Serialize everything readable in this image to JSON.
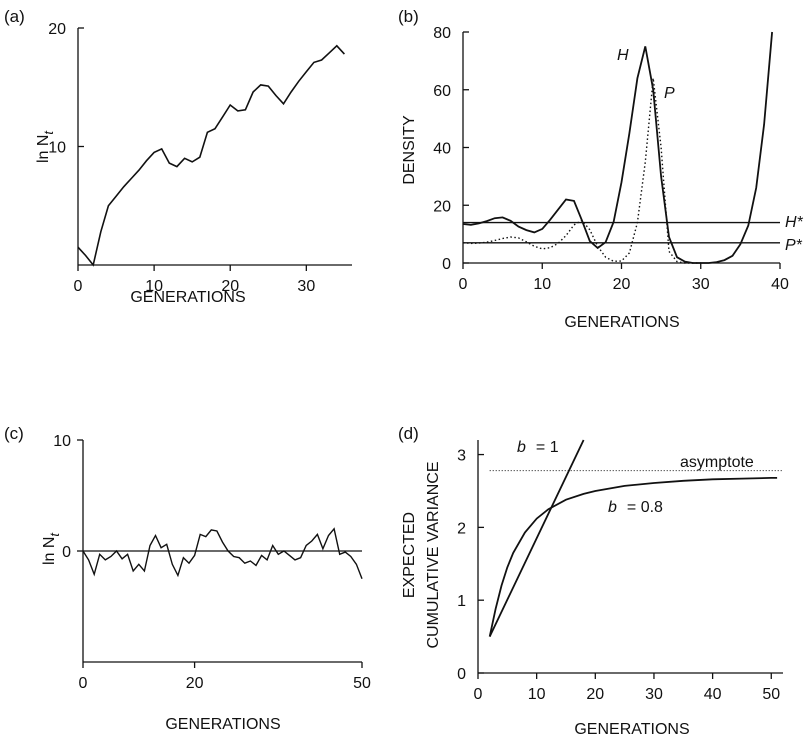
{
  "chart_data": [
    {
      "panel": "(a)",
      "type": "line",
      "xlabel": "GENERATIONS",
      "ylabel": "ln N_t",
      "ylabel_main": "ln N",
      "ylabel_sub": "t",
      "xlim": [
        0,
        36
      ],
      "ylim": [
        0,
        20
      ],
      "xticks": [
        0,
        10,
        20,
        30
      ],
      "yticks": [
        10,
        20
      ],
      "grid": false,
      "series": [
        {
          "style": "solid",
          "x": [
            0,
            1,
            2,
            3,
            4,
            5,
            6,
            7,
            8,
            9,
            10,
            11,
            12,
            13,
            14,
            15,
            16,
            17,
            18,
            19,
            20,
            21,
            22,
            23,
            24,
            25,
            26,
            27,
            28,
            29,
            30,
            31,
            32,
            33,
            34,
            35
          ],
          "y": [
            1.5,
            0.8,
            0,
            2.8,
            5,
            5.8,
            6.6,
            7.3,
            8,
            8.8,
            9.5,
            9.8,
            8.6,
            8.3,
            9,
            8.7,
            9.1,
            11.2,
            11.5,
            12.5,
            13.5,
            13,
            13.1,
            14.6,
            15.2,
            15.1,
            14.3,
            13.6,
            14.6,
            15.5,
            16.3,
            17.1,
            17.3,
            17.9,
            18.5,
            17.8
          ]
        }
      ]
    },
    {
      "panel": "(b)",
      "type": "line",
      "xlabel": "GENERATIONS",
      "ylabel": "DENSITY",
      "xlim": [
        0,
        40
      ],
      "ylim": [
        0,
        80
      ],
      "xticks": [
        0,
        10,
        20,
        30,
        40
      ],
      "yticks": [
        0,
        20,
        40,
        60,
        80
      ],
      "grid": false,
      "series": [
        {
          "name": "H",
          "style": "solid",
          "x": [
            0,
            1,
            2,
            3,
            4,
            5,
            6,
            7,
            8,
            9,
            10,
            11,
            12,
            13,
            14,
            15,
            16,
            17,
            18,
            19,
            20,
            21,
            22,
            23,
            24,
            25,
            26,
            27,
            28,
            29,
            30,
            31,
            32,
            33,
            34,
            35,
            36,
            37,
            38,
            39
          ],
          "y": [
            13.5,
            13.2,
            13.7,
            14.5,
            15.5,
            15.8,
            14.6,
            12.6,
            11.4,
            10.6,
            11.8,
            15,
            18.5,
            22,
            21.5,
            14.8,
            7.6,
            5.2,
            7.2,
            14.2,
            28,
            45,
            64,
            75,
            60,
            30,
            9,
            2,
            0.5,
            0,
            0,
            0,
            0.3,
            1,
            2.5,
            6.5,
            13,
            26,
            48,
            80
          ]
        },
        {
          "name": "P",
          "style": "dotted",
          "x": [
            0,
            1,
            2,
            3,
            4,
            5,
            6,
            7,
            8,
            9,
            10,
            11,
            12,
            13,
            14,
            15,
            16,
            17,
            18,
            19,
            20,
            21,
            22,
            23,
            24,
            25,
            26,
            27,
            28,
            29,
            30
          ],
          "y": [
            7,
            6.8,
            6.9,
            7.2,
            7.8,
            8.5,
            9,
            8.7,
            7.3,
            5.8,
            4.9,
            5.3,
            6.8,
            9.5,
            13.2,
            14.8,
            11.5,
            5.8,
            2,
            0.6,
            0.7,
            3.5,
            14,
            35,
            64,
            40,
            4,
            0.5,
            0,
            0,
            0
          ]
        },
        {
          "name": "H*",
          "style": "thin",
          "x": [
            0,
            40
          ],
          "y": [
            14,
            14
          ]
        },
        {
          "name": "P*",
          "style": "thin",
          "x": [
            0,
            40
          ],
          "y": [
            7,
            7
          ]
        }
      ],
      "annotations": [
        "H",
        "P",
        "H*",
        "P*"
      ]
    },
    {
      "panel": "(c)",
      "type": "line",
      "xlabel": "GENERATIONS",
      "ylabel": "ln N_t",
      "ylabel_main": "ln N",
      "ylabel_sub": "t",
      "xlim": [
        0,
        50
      ],
      "ylim": [
        -10,
        10
      ],
      "xticks": [
        0,
        20,
        50
      ],
      "yticks": [
        0,
        10
      ],
      "grid": false,
      "reference_line_y": 0,
      "series": [
        {
          "style": "solid",
          "x": [
            0,
            1,
            2,
            3,
            4,
            5,
            6,
            7,
            8,
            9,
            10,
            11,
            12,
            13,
            14,
            15,
            16,
            17,
            18,
            19,
            20,
            21,
            22,
            23,
            24,
            25,
            26,
            27,
            28,
            29,
            30,
            31,
            32,
            33,
            34,
            35,
            36,
            37,
            38,
            39,
            40,
            41,
            42,
            43,
            44,
            45,
            46,
            47,
            48,
            49,
            50
          ],
          "y": [
            0,
            -0.8,
            -2.1,
            -0.3,
            -0.8,
            -0.5,
            0,
            -0.7,
            -0.3,
            -1.8,
            -1.2,
            -1.8,
            0.5,
            1.4,
            0.3,
            0.6,
            -1.2,
            -2.2,
            -0.6,
            -1.1,
            -0.4,
            1.5,
            1.3,
            1.9,
            1.8,
            0.8,
            0,
            -0.5,
            -0.6,
            -1.1,
            -0.9,
            -1.3,
            -0.4,
            -0.8,
            0.5,
            -0.3,
            0,
            -0.4,
            -0.8,
            -0.6,
            0.5,
            0.9,
            1.5,
            0.2,
            1.4,
            2,
            -0.3,
            -0.1,
            -0.5,
            -1.2,
            -2.5
          ]
        }
      ]
    },
    {
      "panel": "(d)",
      "type": "line",
      "xlabel": "GENERATIONS",
      "ylabel": "EXPECTED CUMULATIVE VARIANCE",
      "ylabel_line1": "EXPECTED",
      "ylabel_line2": "CUMULATIVE VARIANCE",
      "xlim": [
        0,
        52
      ],
      "ylim": [
        0,
        3.2
      ],
      "xticks": [
        0,
        10,
        20,
        30,
        40,
        50
      ],
      "yticks": [
        0,
        1,
        2,
        3
      ],
      "grid": false,
      "series": [
        {
          "name": "b = 1",
          "style": "solid",
          "x": [
            2,
            18
          ],
          "y": [
            0.5,
            3.2
          ]
        },
        {
          "name": "b = 0.8",
          "style": "solid",
          "x": [
            2,
            3,
            4,
            5,
            6,
            8,
            10,
            12,
            15,
            18,
            20,
            25,
            30,
            35,
            40,
            45,
            50,
            51
          ],
          "y": [
            0.5,
            0.88,
            1.2,
            1.45,
            1.65,
            1.93,
            2.12,
            2.25,
            2.38,
            2.46,
            2.5,
            2.57,
            2.61,
            2.64,
            2.66,
            2.67,
            2.68,
            2.68
          ]
        },
        {
          "name": "asymptote",
          "style": "dotted",
          "x": [
            2,
            52
          ],
          "y": [
            2.78,
            2.78
          ]
        }
      ],
      "label_b": "b",
      "label_b1": "= 1",
      "label_b08": "= 0.8",
      "label_asymptote": "asymptote"
    }
  ]
}
